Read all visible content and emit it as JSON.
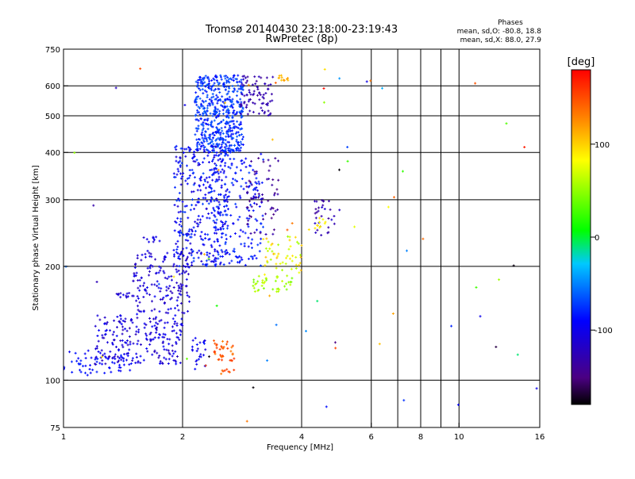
{
  "chart_data": {
    "type": "scatter",
    "title": "Tromsø 20140430 23:18:00-23:19:43",
    "subtitle": "RwPretec (8p)",
    "xlabel": "Frequency [MHz]",
    "ylabel": "Stationary phase Virtual Height [km]",
    "x_scale": "log",
    "y_scale": "log",
    "xlim": [
      1,
      16
    ],
    "ylim": [
      75,
      750
    ],
    "x_ticks": [
      1,
      2,
      4,
      6,
      8,
      10,
      16
    ],
    "x_tick_labels": [
      "1",
      "2",
      "4",
      "6",
      "8",
      "10",
      "16"
    ],
    "x_gridlines": [
      2,
      4,
      6,
      7,
      8,
      9,
      10
    ],
    "y_ticks": [
      75,
      100,
      200,
      300,
      400,
      500,
      600,
      750
    ],
    "y_tick_labels": [
      "75",
      "100",
      "200",
      "300",
      "400",
      "500",
      "600",
      "750"
    ],
    "y_gridlines": [
      100,
      200,
      300,
      400,
      500,
      600
    ],
    "grid": true,
    "stats": {
      "heading": "Phases",
      "line_o": "mean, sd,O: -80.8, 18.8",
      "line_x": "mean, sd,X: 88.0, 27.9"
    },
    "colorbar": {
      "label": "[deg]",
      "range": [
        -180,
        180
      ],
      "ticks": [
        100,
        0,
        -100
      ],
      "tick_labels": [
        "100",
        "0",
        "-100"
      ]
    },
    "clusters": [
      {
        "x": [
          1.0,
          1.5
        ],
        "y": [
          103,
          120
        ],
        "n": 60,
        "phase": [
          -100,
          -80
        ]
      },
      {
        "x": [
          1.2,
          2.0
        ],
        "y": [
          110,
          150
        ],
        "n": 220,
        "phase": [
          -125,
          -90
        ]
      },
      {
        "x": [
          1.5,
          2.1
        ],
        "y": [
          150,
          220
        ],
        "n": 160,
        "phase": [
          -125,
          -95
        ]
      },
      {
        "x": [
          1.35,
          1.6
        ],
        "y": [
          165,
          170
        ],
        "n": 14,
        "phase": [
          -120,
          -100
        ]
      },
      {
        "x": [
          1.55,
          1.75
        ],
        "y": [
          232,
          240
        ],
        "n": 10,
        "phase": [
          -115,
          -95
        ]
      },
      {
        "x": [
          1.9,
          2.6
        ],
        "y": [
          200,
          420
        ],
        "n": 360,
        "phase": [
          -115,
          -70
        ]
      },
      {
        "x": [
          2.1,
          2.3
        ],
        "y": [
          105,
          130
        ],
        "n": 25,
        "phase": [
          -110,
          -80
        ]
      },
      {
        "x": [
          2.15,
          2.85
        ],
        "y": [
          400,
          640
        ],
        "n": 520,
        "phase": [
          -90,
          -60
        ]
      },
      {
        "x": [
          2.4,
          3.2
        ],
        "y": [
          200,
          400
        ],
        "n": 180,
        "phase": [
          -100,
          -70
        ]
      },
      {
        "x": [
          2.4,
          2.7
        ],
        "y": [
          112,
          128
        ],
        "n": 35,
        "phase": [
          130,
          160
        ]
      },
      {
        "x": [
          2.5,
          2.7
        ],
        "y": [
          102,
          107
        ],
        "n": 8,
        "phase": [
          130,
          160
        ]
      },
      {
        "x": [
          2.8,
          3.4
        ],
        "y": [
          500,
          640
        ],
        "n": 80,
        "phase": [
          -140,
          -120
        ]
      },
      {
        "x": [
          2.9,
          3.5
        ],
        "y": [
          240,
          400
        ],
        "n": 60,
        "phase": [
          -150,
          -130
        ]
      },
      {
        "x": [
          3.0,
          3.8
        ],
        "y": [
          170,
          190
        ],
        "n": 40,
        "phase": [
          40,
          70
        ]
      },
      {
        "x": [
          3.2,
          4.0
        ],
        "y": [
          190,
          240
        ],
        "n": 50,
        "phase": [
          50,
          110
        ]
      },
      {
        "x": [
          3.5,
          3.7
        ],
        "y": [
          620,
          640
        ],
        "n": 12,
        "phase": [
          100,
          120
        ]
      },
      {
        "x": [
          4.3,
          5.0
        ],
        "y": [
          240,
          300
        ],
        "n": 30,
        "phase": [
          -140,
          -110
        ]
      },
      {
        "x": [
          4.3,
          4.6
        ],
        "y": [
          250,
          270
        ],
        "n": 10,
        "phase": [
          75,
          95
        ]
      },
      {
        "x": [
          1.0,
          16.0
        ],
        "y": [
          75,
          700
        ],
        "n": 70,
        "phase": [
          -180,
          180
        ]
      }
    ]
  }
}
